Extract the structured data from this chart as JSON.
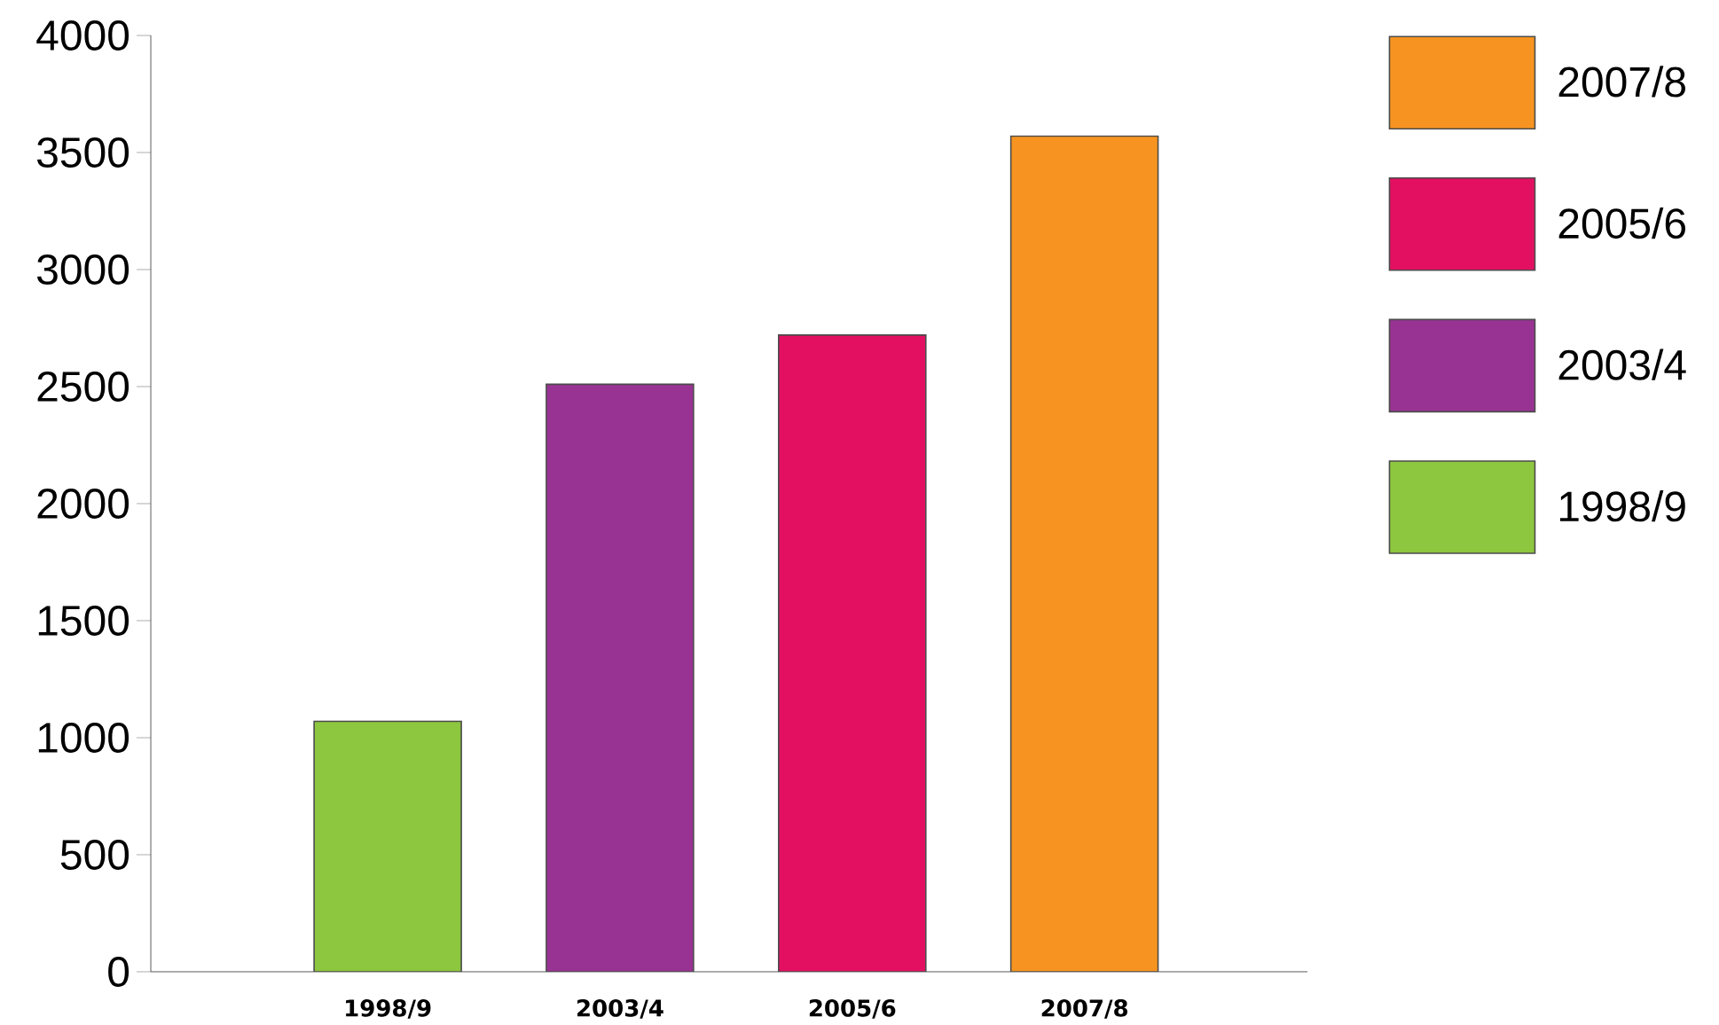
{
  "chart_data": {
    "type": "bar",
    "categories": [
      "1998/9",
      "2003/4",
      "2005/6",
      "2007/8"
    ],
    "series": [
      {
        "name": "1998/9",
        "color": "#8dc63f",
        "values": [
          1070,
          null,
          null,
          null
        ]
      },
      {
        "name": "2003/4",
        "color": "#993393",
        "values": [
          null,
          2510,
          null,
          null
        ]
      },
      {
        "name": "2005/6",
        "color": "#e31062",
        "values": [
          null,
          null,
          2720,
          null
        ]
      },
      {
        "name": "2007/8",
        "color": "#f79421",
        "values": [
          null,
          null,
          null,
          3570
        ]
      }
    ],
    "ylim": [
      0,
      4000
    ],
    "yticks": [
      0,
      500,
      1000,
      1500,
      2000,
      2500,
      3000,
      3500,
      4000
    ],
    "grid": false,
    "legend": "right"
  }
}
